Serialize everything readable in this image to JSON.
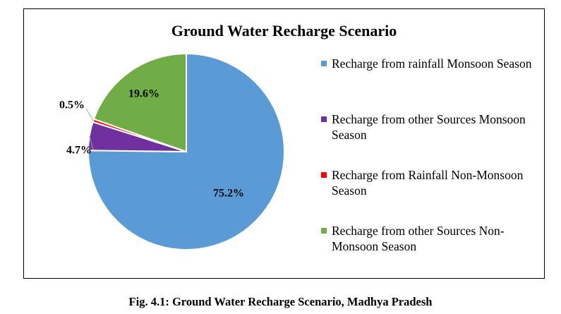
{
  "chart_data": {
    "type": "pie",
    "title": "Ground Water Recharge Scenario",
    "slices": [
      {
        "label": "Recharge from rainfall Monsoon Season",
        "value": 75.2,
        "display": "75.2%",
        "color": "#5b9bd5"
      },
      {
        "label": "Recharge from other Sources Monsoon Season",
        "value": 4.7,
        "display": "4.7%",
        "color": "#7030a0"
      },
      {
        "label": "Recharge from Rainfall Non-Monsoon Season",
        "value": 0.5,
        "display": "0.5%",
        "color": "#ff0000"
      },
      {
        "label": "Recharge from other Sources Non-Monsoon Season",
        "value": 19.6,
        "display": "19.6%",
        "color": "#70ad47"
      }
    ],
    "legend_position": "right"
  },
  "caption": "Fig. 4.1: Ground Water Recharge Scenario, Madhya Pradesh"
}
